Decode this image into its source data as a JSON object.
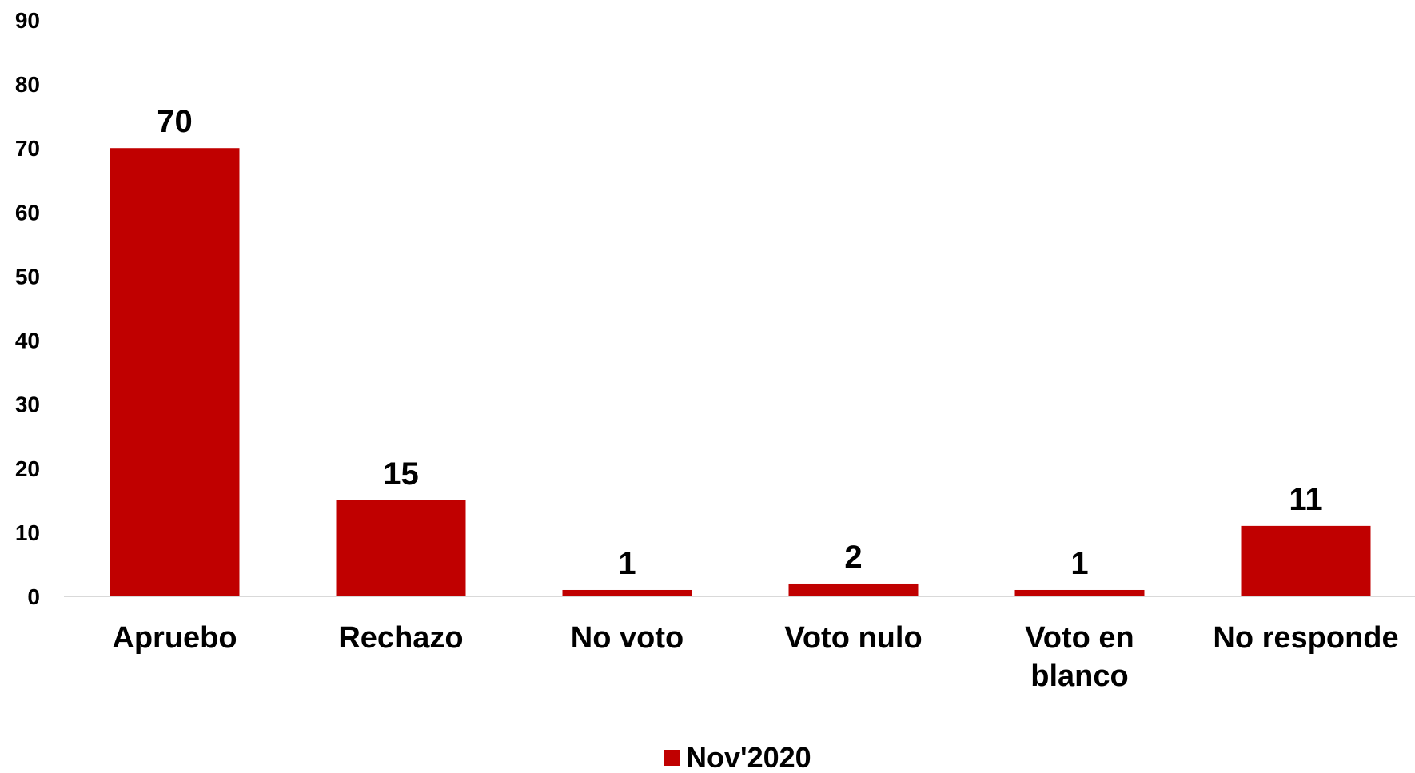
{
  "chart_data": {
    "type": "bar",
    "categories": [
      "Apruebo",
      "Rechazo",
      "No voto",
      "Voto nulo",
      "Voto en blanco",
      "No responde"
    ],
    "category_lines": [
      [
        "Apruebo"
      ],
      [
        "Rechazo"
      ],
      [
        "No voto"
      ],
      [
        "Voto nulo"
      ],
      [
        "Voto en",
        "blanco"
      ],
      [
        "No responde"
      ]
    ],
    "series": [
      {
        "name": "Nov'2020",
        "values": [
          70,
          15,
          1,
          2,
          1,
          11
        ],
        "color": "#C00000"
      }
    ],
    "ylim": [
      0,
      90
    ],
    "yticks": [
      0,
      10,
      20,
      30,
      40,
      50,
      60,
      70,
      80,
      90
    ],
    "title": "",
    "xlabel": "",
    "ylabel": "",
    "grid": false,
    "legend_position": "bottom-center"
  }
}
